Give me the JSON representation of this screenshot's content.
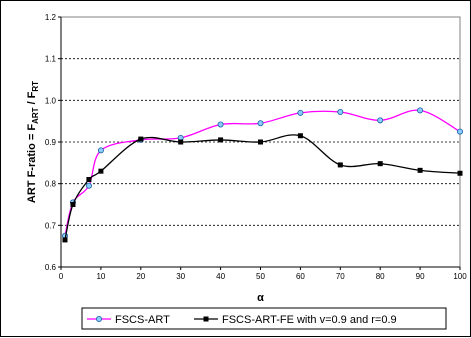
{
  "chart_data": {
    "type": "line",
    "xlabel": "α",
    "ylabel": "ART F-ratio = F",
    "ylabel_sub1": "ART",
    "ylabel_mid": " / F",
    "ylabel_sub2": "RT",
    "xlim": [
      0,
      100
    ],
    "ylim": [
      0.6,
      1.2
    ],
    "x_ticks": [
      "0",
      "10",
      "20",
      "30",
      "40",
      "50",
      "60",
      "70",
      "80",
      "90",
      "100"
    ],
    "y_ticks": [
      "0.6",
      "0.7",
      "0.8",
      "0.9",
      "1.0",
      "1.1",
      "1.2"
    ],
    "grid": "horizontal",
    "legend_position": "bottom",
    "series": [
      {
        "name": "FSCS-ART",
        "color": "#ff00ff",
        "marker": "circle",
        "marker_fill": "#87cefa",
        "x": [
          1,
          3,
          7,
          10,
          20,
          30,
          40,
          50,
          60,
          70,
          80,
          90,
          100
        ],
        "y": [
          0.675,
          0.755,
          0.795,
          0.88,
          0.905,
          0.91,
          0.942,
          0.945,
          0.97,
          0.972,
          0.952,
          0.976,
          0.925
        ]
      },
      {
        "name": "FSCS-ART-FE with v=0.9 and r=0.9",
        "color": "#000000",
        "marker": "square",
        "marker_fill": "#000000",
        "x": [
          1,
          3,
          7,
          10,
          20,
          30,
          40,
          50,
          60,
          70,
          80,
          90,
          100
        ],
        "y": [
          0.665,
          0.75,
          0.81,
          0.83,
          0.907,
          0.9,
          0.905,
          0.9,
          0.915,
          0.845,
          0.848,
          0.832,
          0.825
        ]
      }
    ]
  }
}
